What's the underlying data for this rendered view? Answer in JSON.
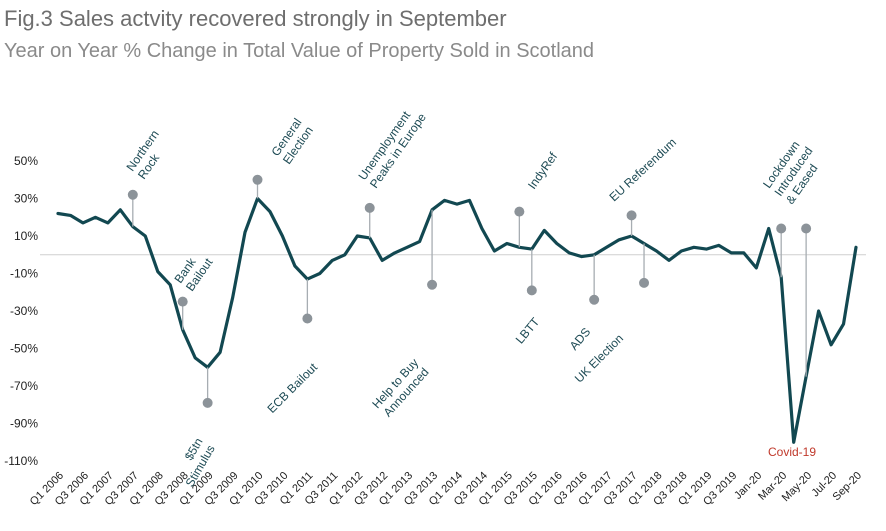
{
  "chart_data": {
    "type": "line",
    "title": "Fig.3 Sales actvity recovered strongly in September",
    "subtitle": "Year on Year % Change in Total Value of Property Sold in Scotland",
    "ylim": [
      -110,
      50
    ],
    "y_ticks": [
      50,
      30,
      10,
      -10,
      -30,
      -50,
      -70,
      -90,
      -110
    ],
    "y_tick_labels": [
      "50%",
      "30%",
      "10%",
      "-10%",
      "-30%",
      "-50%",
      "-70%",
      "-90%",
      "-110%"
    ],
    "x_tick_labels": [
      "Q1 2006",
      "Q3 2006",
      "Q1 2007",
      "Q3 2007",
      "Q1 2008",
      "Q3 2008",
      "Q1 2009",
      "Q3 2009",
      "Q1 2010",
      "Q3 2010",
      "Q1 2011",
      "Q3 2011",
      "Q1 2012",
      "Q3 2012",
      "Q1 2013",
      "Q3 2013",
      "Q1 2014",
      "Q3 2014",
      "Q1 2015",
      "Q3 2015",
      "Q1 2016",
      "Q3 2016",
      "Q1 2017",
      "Q3 2017",
      "Q1 2018",
      "Q3 2018",
      "Q1 2019",
      "Q3 2019",
      "Jan-20",
      "Mar-20",
      "May-20",
      "Jul-20",
      "Sep-20"
    ],
    "series": [
      {
        "values": [
          22,
          21,
          17,
          20,
          17,
          24,
          15,
          10,
          -9,
          -16,
          -40,
          -55,
          -60,
          -52,
          -23,
          12,
          30,
          23,
          10,
          -6,
          -13,
          -10,
          -3,
          0,
          10,
          9,
          -3,
          1,
          4,
          7,
          24,
          29,
          27,
          29,
          14,
          2,
          6,
          4,
          3,
          13,
          6,
          1,
          -1,
          0,
          4,
          8,
          10,
          6,
          2,
          -3,
          2,
          4,
          3,
          5,
          1,
          1,
          -7,
          14,
          -12,
          -100,
          -65,
          -30,
          -48,
          -37,
          4
        ]
      }
    ],
    "annotations": [
      {
        "lines": [
          "Northern",
          "Rock"
        ],
        "marker_value": 32
      },
      {
        "lines": [
          "Bank",
          "Bailout"
        ],
        "marker_value": -25
      },
      {
        "lines": [
          "$5tn",
          "Stimulus"
        ],
        "marker_value": -79
      },
      {
        "lines": [
          "General",
          "Election"
        ],
        "marker_value": 40
      },
      {
        "lines": [
          "ECB Bailout"
        ],
        "marker_value": -34
      },
      {
        "lines": [
          "Unemployment",
          "Peaks in Europe"
        ],
        "marker_value": 25
      },
      {
        "lines": [
          "Help to Buy",
          "Announced"
        ],
        "marker_value": -16
      },
      {
        "lines": [
          "IndyRef"
        ],
        "marker_value": 23
      },
      {
        "lines": [
          "LBTT"
        ],
        "marker_value": -19
      },
      {
        "lines": [
          "ADS"
        ],
        "marker_value": -24
      },
      {
        "lines": [
          "EU Referendum"
        ],
        "marker_value": 21
      },
      {
        "lines": [
          "UK Election"
        ],
        "marker_value": -15
      },
      {
        "lines": [
          "Lockdown",
          "Introduced",
          "& Eased"
        ],
        "marker_value": 14
      },
      {
        "lines": [
          "Covid-19"
        ],
        "marker_value": null
      }
    ],
    "colors": {
      "line": "#124851",
      "marker": "#8c9399",
      "leader": "#a7adb2",
      "zero_line": "#cfcfcf",
      "covid_label": "#c0392b"
    },
    "grid": false,
    "legend": "none"
  }
}
